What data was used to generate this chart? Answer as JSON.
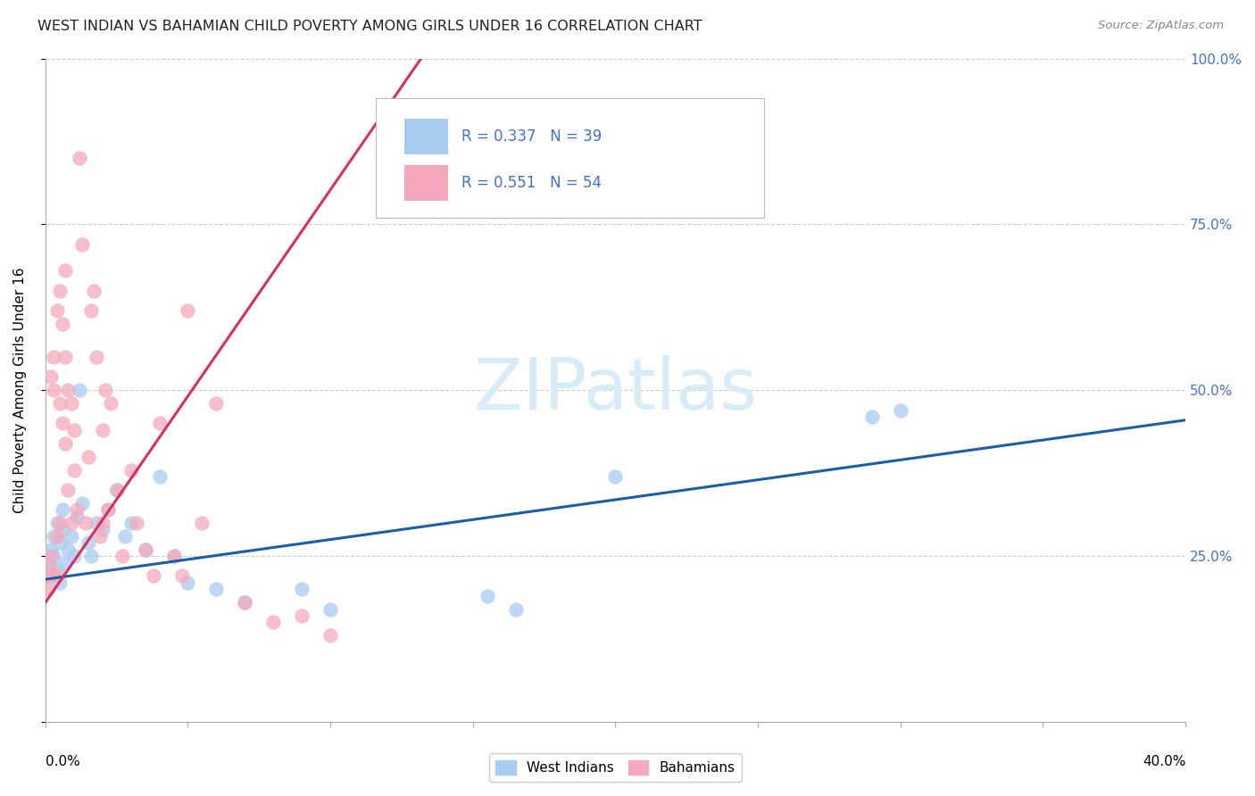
{
  "title": "WEST INDIAN VS BAHAMIAN CHILD POVERTY AMONG GIRLS UNDER 16 CORRELATION CHART",
  "source": "Source: ZipAtlas.com",
  "ylabel": "Child Poverty Among Girls Under 16",
  "xlim": [
    0.0,
    0.4
  ],
  "ylim": [
    0.0,
    1.0
  ],
  "west_indian_R": 0.337,
  "west_indian_N": 39,
  "bahamian_R": 0.551,
  "bahamian_N": 54,
  "blue_scatter_color": "#A8CCF0",
  "pink_scatter_color": "#F5A8BC",
  "blue_line_color": "#1B5EA8",
  "pink_line_color": "#D43060",
  "axis_label_color": "#4472C4",
  "title_color": "#222222",
  "source_color": "#888888",
  "grid_color": "#CCCCCC",
  "watermark_color": "#D8ECF8",
  "wi_x": [
    0.001,
    0.002,
    0.002,
    0.003,
    0.003,
    0.004,
    0.004,
    0.005,
    0.005,
    0.006,
    0.006,
    0.007,
    0.008,
    0.009,
    0.01,
    0.011,
    0.012,
    0.013,
    0.015,
    0.016,
    0.018,
    0.02,
    0.022,
    0.025,
    0.028,
    0.03,
    0.035,
    0.04,
    0.045,
    0.05,
    0.06,
    0.07,
    0.09,
    0.1,
    0.155,
    0.165,
    0.2,
    0.29,
    0.3
  ],
  "wi_y": [
    0.24,
    0.26,
    0.22,
    0.28,
    0.25,
    0.23,
    0.3,
    0.27,
    0.21,
    0.29,
    0.32,
    0.24,
    0.26,
    0.28,
    0.25,
    0.31,
    0.5,
    0.33,
    0.27,
    0.25,
    0.3,
    0.29,
    0.32,
    0.35,
    0.28,
    0.3,
    0.26,
    0.37,
    0.25,
    0.21,
    0.2,
    0.18,
    0.2,
    0.17,
    0.19,
    0.17,
    0.37,
    0.46,
    0.47
  ],
  "bah_x": [
    0.001,
    0.001,
    0.002,
    0.002,
    0.002,
    0.003,
    0.003,
    0.004,
    0.004,
    0.004,
    0.005,
    0.005,
    0.005,
    0.006,
    0.006,
    0.007,
    0.007,
    0.007,
    0.008,
    0.008,
    0.009,
    0.009,
    0.01,
    0.01,
    0.011,
    0.012,
    0.013,
    0.014,
    0.015,
    0.016,
    0.017,
    0.018,
    0.019,
    0.02,
    0.02,
    0.021,
    0.022,
    0.023,
    0.025,
    0.027,
    0.03,
    0.032,
    0.035,
    0.038,
    0.04,
    0.045,
    0.048,
    0.05,
    0.055,
    0.06,
    0.07,
    0.08,
    0.09,
    0.1
  ],
  "bah_y": [
    0.22,
    0.2,
    0.52,
    0.25,
    0.23,
    0.55,
    0.5,
    0.62,
    0.28,
    0.22,
    0.65,
    0.48,
    0.3,
    0.6,
    0.45,
    0.68,
    0.42,
    0.55,
    0.5,
    0.35,
    0.48,
    0.3,
    0.44,
    0.38,
    0.32,
    0.85,
    0.72,
    0.3,
    0.4,
    0.62,
    0.65,
    0.55,
    0.28,
    0.44,
    0.3,
    0.5,
    0.32,
    0.48,
    0.35,
    0.25,
    0.38,
    0.3,
    0.26,
    0.22,
    0.45,
    0.25,
    0.22,
    0.62,
    0.3,
    0.48,
    0.18,
    0.15,
    0.16,
    0.13
  ],
  "blue_trendline_x": [
    0.0,
    0.4
  ],
  "blue_trendline_y": [
    0.215,
    0.455
  ],
  "pink_trendline_x": [
    0.0,
    0.135
  ],
  "pink_trendline_y": [
    0.18,
    1.02
  ]
}
